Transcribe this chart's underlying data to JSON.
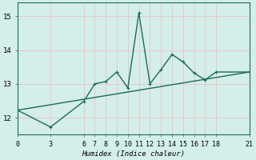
{
  "xlabel": "Humidex (Indice chaleur)",
  "ylabel": "",
  "bg_color": "#d4eeea",
  "line_color": "#1a6b5a",
  "grid_color": "#e8c8c8",
  "spine_color": "#1a6b5a",
  "xlim": [
    0,
    21
  ],
  "ylim": [
    11.5,
    15.4
  ],
  "xticks": [
    0,
    3,
    6,
    7,
    8,
    9,
    10,
    11,
    12,
    13,
    14,
    15,
    16,
    17,
    18,
    21
  ],
  "yticks": [
    12,
    13,
    14,
    15
  ],
  "series1_x": [
    0,
    3,
    6,
    7,
    8,
    9,
    10,
    11,
    12,
    13,
    14,
    15,
    16,
    17,
    18,
    21
  ],
  "series1_y": [
    12.22,
    11.72,
    12.48,
    13.0,
    13.07,
    13.35,
    12.88,
    15.1,
    13.0,
    13.42,
    13.87,
    13.65,
    13.32,
    13.12,
    13.35,
    13.35
  ],
  "series2_x": [
    0,
    21
  ],
  "series2_y": [
    12.22,
    13.35
  ],
  "marker_size": 2.5,
  "line_width": 1.0
}
